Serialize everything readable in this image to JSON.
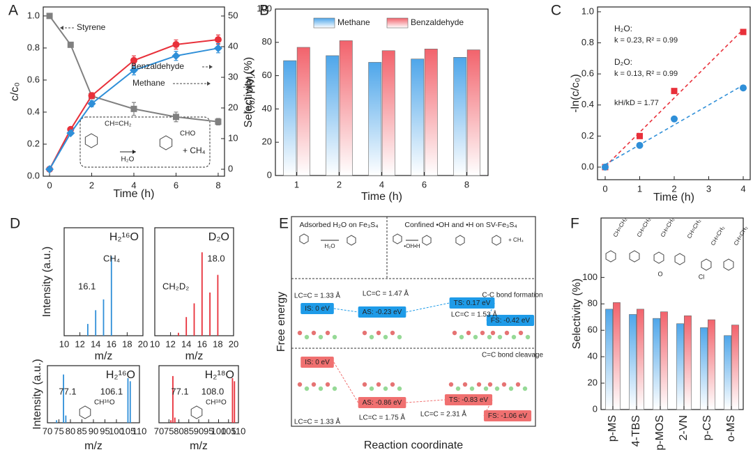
{
  "chart_data": [
    {
      "panel": "A",
      "type": "line",
      "x": [
        0,
        1,
        2,
        4,
        6,
        8
      ],
      "xlim": [
        -0.3,
        8.3
      ],
      "xticks": [
        0,
        2,
        4,
        6,
        8
      ],
      "xlabel": "Time (h)",
      "ylabel": "c/c₀",
      "ylim": [
        0,
        1.056
      ],
      "yticks": [
        {
          "value": 0,
          "label": "0.0"
        },
        0.2,
        0.4,
        0.6,
        0.8,
        {
          "value": 1,
          "label": "1.0"
        }
      ],
      "y2label": "Yield (%)",
      "y2lim": [
        -2.27,
        52.95
      ],
      "y2ticks": [
        0,
        10,
        20,
        30,
        40,
        50
      ],
      "series": [
        {
          "name": "Styrene",
          "color": "#808080",
          "marker": "square",
          "values": [
            1.0,
            0.82,
            0.5,
            0.42,
            0.37,
            0.34
          ],
          "errors": [
            0,
            0,
            0,
            0.04,
            0.03,
            0.02
          ]
        },
        {
          "name": "Benzaldehyde",
          "color": "#e8303a",
          "marker": "circle",
          "axis": "y2",
          "values": [
            0,
            13,
            24,
            35.5,
            40.7,
            42.3
          ],
          "errors": [
            0,
            0.5,
            1,
            1.5,
            1.5,
            1.5
          ]
        },
        {
          "name": "Methane",
          "color": "#2f8fd8",
          "marker": "diamond",
          "axis": "y2",
          "values": [
            0,
            11.8,
            21.4,
            32.3,
            37,
            39.5
          ],
          "errors": [
            0,
            0.5,
            1,
            1.5,
            1.5,
            1.5
          ]
        }
      ],
      "annotations": [
        "CH=CH₂",
        "CHO",
        "H₂O",
        "+  CH₄"
      ]
    },
    {
      "panel": "B",
      "type": "bar",
      "categories": [
        "1",
        "2",
        "4",
        "6",
        "8"
      ],
      "xlabel": "Time (h)",
      "ylabel": "Selectivity (%)",
      "ylim": [
        0,
        100
      ],
      "yticks": [
        0,
        20,
        40,
        60,
        80,
        100
      ],
      "legend": "top-right",
      "series": [
        {
          "name": "Methane",
          "color": "#4ea6ea",
          "values": [
            69,
            72,
            68,
            70,
            71
          ]
        },
        {
          "name": "Benzaldehyde",
          "color": "#f2636c",
          "values": [
            77,
            81,
            75,
            76,
            75.5
          ]
        }
      ]
    },
    {
      "panel": "C",
      "type": "scatter",
      "x": [
        0,
        1,
        2,
        4
      ],
      "xlim": [
        -0.222,
        4.202
      ],
      "xticks": [
        0,
        1,
        2,
        3,
        4
      ],
      "xlabel": "Time (h)",
      "ylabel": "-ln(c/c₀)",
      "ylim": [
        -0.081,
        1.031
      ],
      "yticks": [
        {
          "value": 0,
          "label": "0.0"
        },
        0.2,
        0.4,
        0.6,
        0.8,
        {
          "value": 1,
          "label": "1.0"
        }
      ],
      "series": [
        {
          "name": "H₂O:",
          "color": "#e8303a",
          "marker": "square",
          "values": [
            0,
            0.2,
            0.49,
            0.87
          ]
        },
        {
          "name": "D₂O:",
          "color": "#2f8fd8",
          "marker": "circle",
          "values": [
            0,
            0.14,
            0.31,
            0.51
          ]
        }
      ],
      "annotations": [
        "k = 0.23, R² = 0.99",
        "k = 0.13, R² = 0.99",
        "kH/kD = 1.77"
      ]
    },
    {
      "panel": "D",
      "type": "stem",
      "title": "H₂¹⁶O",
      "color": "#2f8fd8",
      "x": [
        13,
        14,
        15,
        16
      ],
      "values": [
        0.12,
        0.26,
        0.37,
        0.81
      ],
      "xlim": [
        10,
        20
      ],
      "xticks": [
        10,
        12,
        14,
        16,
        18,
        20
      ],
      "ylim": [
        0,
        1.1
      ],
      "xlabel": "m/z",
      "ylabel": "Intensity (a.u.)",
      "annotations": [
        "CH₄",
        "16.1"
      ]
    },
    {
      "type": "stem",
      "title": "D₂O",
      "color": "#e8303a",
      "x": [
        13,
        14,
        15,
        16,
        17,
        18
      ],
      "values": [
        0.03,
        0.19,
        0.33,
        0.85,
        0.44,
        0.62
      ],
      "xlim": [
        10,
        20
      ],
      "xticks": [
        10,
        12,
        14,
        16,
        18,
        20
      ],
      "ylim": [
        0,
        1.1
      ],
      "xlabel": "m/z",
      "annotations": [
        "CH₂D₂",
        "18.0"
      ]
    },
    {
      "type": "stem",
      "title": "H₂¹⁶O",
      "color": "#2f8fd8",
      "x": [
        74,
        77,
        78,
        105,
        106
      ],
      "values": [
        0.05,
        0.93,
        0.14,
        0.86,
        0.8
      ],
      "xlim": [
        70,
        110
      ],
      "xticks": [
        70,
        75,
        80,
        85,
        90,
        95,
        100,
        105,
        110
      ],
      "ylim": [
        0,
        1.1
      ],
      "xlabel": "m/z",
      "ylabel": "Intensity (a.u.)",
      "annotations": [
        "77.1",
        "106.1",
        "CH¹⁶O"
      ]
    },
    {
      "type": "stem",
      "title": "H₂¹⁸O",
      "color": "#e8303a",
      "x": [
        76,
        77,
        78,
        107,
        108
      ],
      "values": [
        0.05,
        0.9,
        0.1,
        0.86,
        0.8
      ],
      "xlim": [
        70,
        110
      ],
      "xticks": [
        70,
        75,
        80,
        85,
        90,
        95,
        100,
        105,
        110
      ],
      "ylim": [
        0,
        1.1
      ],
      "xlabel": "m/z",
      "annotations": [
        "77.1",
        "108.0",
        "CH¹⁸O"
      ]
    },
    {
      "panel": "F",
      "type": "bar",
      "categories": [
        "p-MS",
        "4-TBS",
        "p-MOS",
        "2-VN",
        "p-CS",
        "o-MS"
      ],
      "ylabel": "Selectivity (%)",
      "ylim": [
        0,
        145
      ],
      "yticks": [
        0,
        20,
        40,
        60,
        80,
        100
      ],
      "series": [
        {
          "color": "#4ea6ea",
          "values": [
            76,
            72,
            69,
            65,
            62,
            56
          ]
        },
        {
          "color": "#f2636c",
          "values": [
            81,
            76,
            74,
            71,
            68,
            64
          ]
        }
      ],
      "annotations": [
        "CH=CH₂",
        "CH=CH₂",
        "CH=CH₂",
        "CH=CH₂",
        "CH=CH₂",
        "CH=CH₂",
        "O",
        "Cl"
      ]
    }
  ],
  "diagram": {
    "panel": "E",
    "ylabel": "Free energy",
    "xlabel": "Reaction coordinate",
    "headers": [
      "Adsorbed H₂O on Fe₃S₄",
      "Confined •OH and •H on SV-Fe₃S₄"
    ],
    "scheme_labels": [
      "H₂O",
      "•OH•H",
      "+ CH₄"
    ],
    "rows": [
      {
        "caption": "C-C bond formation",
        "color": "#1e9be8",
        "states": [
          "IS: 0 eV",
          "AS: -0.23 eV",
          "TS: 0.17 eV",
          "FS: -0.42 eV"
        ],
        "bonds": [
          "LC=C = 1.33 Å",
          "LC=C = 1.47 Å",
          "LC=C = 1.53 Å"
        ]
      },
      {
        "caption": "C=C bond cleavage",
        "color": "#f07070",
        "states": [
          "IS: 0 eV",
          "AS: -0.86 eV",
          "TS: -0.83 eV",
          "FS: -1.06 eV"
        ],
        "bonds": [
          "LC=C = 1.33 Å",
          "LC=C = 1.75 Å",
          "LC=C = 2.31 Å"
        ]
      }
    ]
  }
}
